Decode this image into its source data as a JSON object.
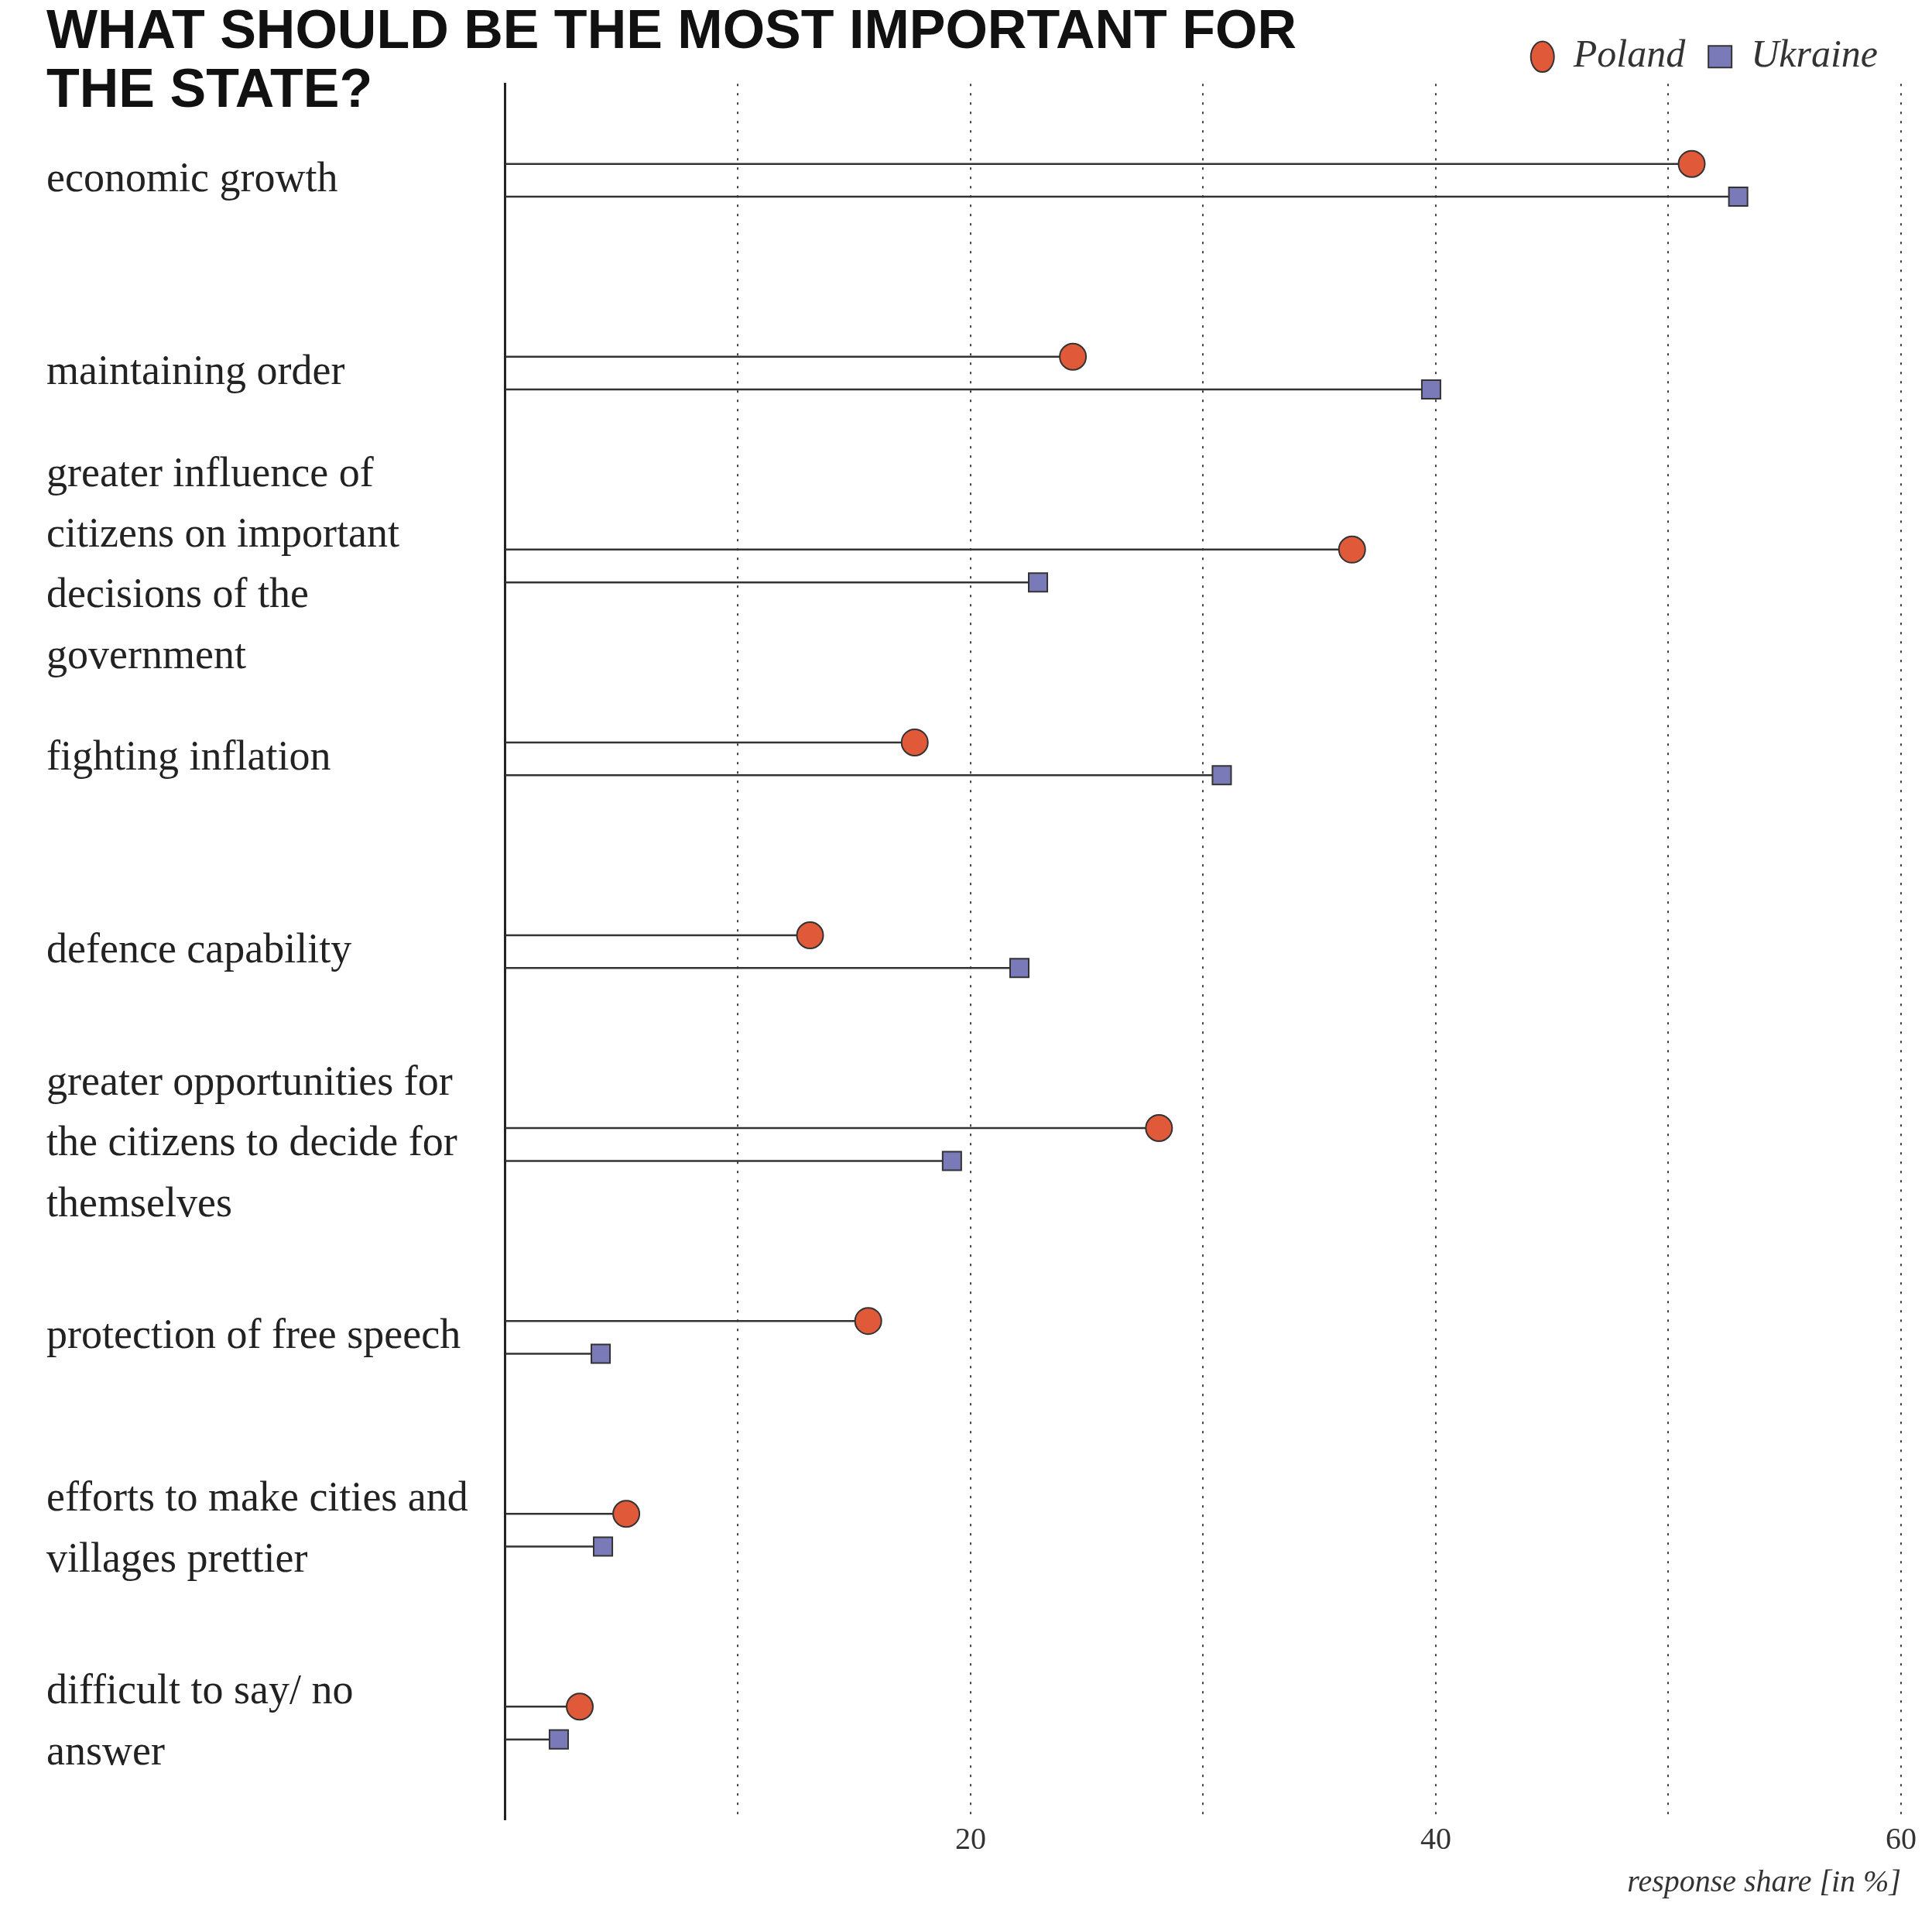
{
  "chart_data": {
    "type": "lollipop",
    "orientation": "horizontal",
    "title": "WHAT SHOULD BE THE MOST IMPORTANT FOR THE STATE?",
    "xlabel": "response share [in %]",
    "categories": [
      "economic growth",
      "maintaining order",
      "greater influence of citizens on important decisions of the government",
      "fighting inflation",
      "defence capability",
      "greater opportunities for the citizens to decide for themselves",
      "protection of free speech",
      "efforts to make cities and villages prettier",
      "difficult to say/ no answer"
    ],
    "series": [
      {
        "name": "Poland",
        "color": "#e05a3a",
        "marker": "circle",
        "values": [
          51,
          24.4,
          36.4,
          17.6,
          13.1,
          28.1,
          15.6,
          5.2,
          3.2
        ]
      },
      {
        "name": "Ukraine",
        "color": "#7a7ab8",
        "marker": "square",
        "values": [
          53,
          39.8,
          22.9,
          30.8,
          22.1,
          19.2,
          4.1,
          4.2,
          2.3
        ]
      }
    ],
    "xlim": [
      0,
      60
    ],
    "xticks": [
      {
        "value": 10,
        "label": null
      },
      20,
      {
        "value": 30,
        "label": null
      },
      40,
      {
        "value": 50,
        "label": null
      },
      60
    ],
    "grid": "x",
    "legend": "top right"
  }
}
